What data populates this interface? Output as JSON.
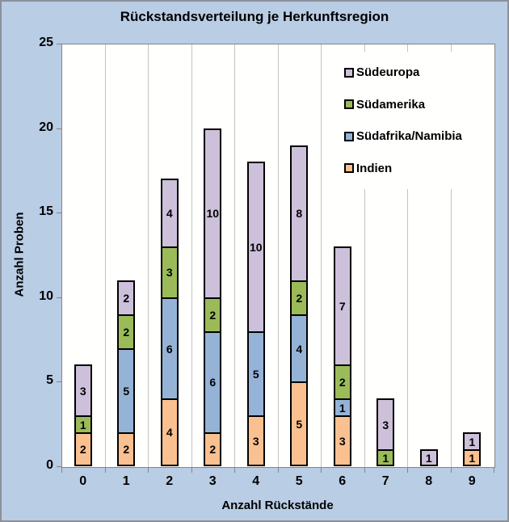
{
  "chart_data": {
    "type": "bar",
    "stacked": true,
    "title": "Rückstandsverteilung je Herkunftsregion",
    "xlabel": "Anzahl Rückstände",
    "ylabel": "Anzahl Proben",
    "categories": [
      "0",
      "1",
      "2",
      "3",
      "4",
      "5",
      "6",
      "7",
      "8",
      "9"
    ],
    "series": [
      {
        "name": "Indien",
        "color": "#FAC090",
        "values": [
          2,
          2,
          4,
          2,
          3,
          5,
          3,
          0,
          0,
          1
        ]
      },
      {
        "name": "Südafrika/Namibia",
        "color": "#95B3D7",
        "values": [
          0,
          5,
          6,
          6,
          5,
          4,
          1,
          0,
          0,
          0
        ]
      },
      {
        "name": "Südamerika",
        "color": "#9BBB59",
        "values": [
          1,
          2,
          3,
          2,
          0,
          2,
          2,
          1,
          0,
          0
        ]
      },
      {
        "name": "Südeuropa",
        "color": "#CCC0DA",
        "values": [
          3,
          2,
          4,
          10,
          10,
          8,
          7,
          3,
          1,
          1
        ]
      }
    ],
    "totals": [
      6,
      11,
      17,
      20,
      18,
      19,
      13,
      4,
      1,
      2
    ],
    "ylim": [
      0,
      25
    ],
    "yticks": [
      0,
      5,
      10,
      15,
      20,
      25
    ],
    "grid": "vertical-only",
    "data_labels": true,
    "legend_position": "top-right-inside",
    "legend_order": [
      "Südeuropa",
      "Südamerika",
      "Südafrika/Namibia",
      "Indien"
    ],
    "colors": {
      "background": "#B9CDE5",
      "plot_background": "#FFFFFE",
      "gridline": "#C3C3C3",
      "axis": "#848484",
      "bar_border": "#000000",
      "text": "#000000"
    }
  }
}
